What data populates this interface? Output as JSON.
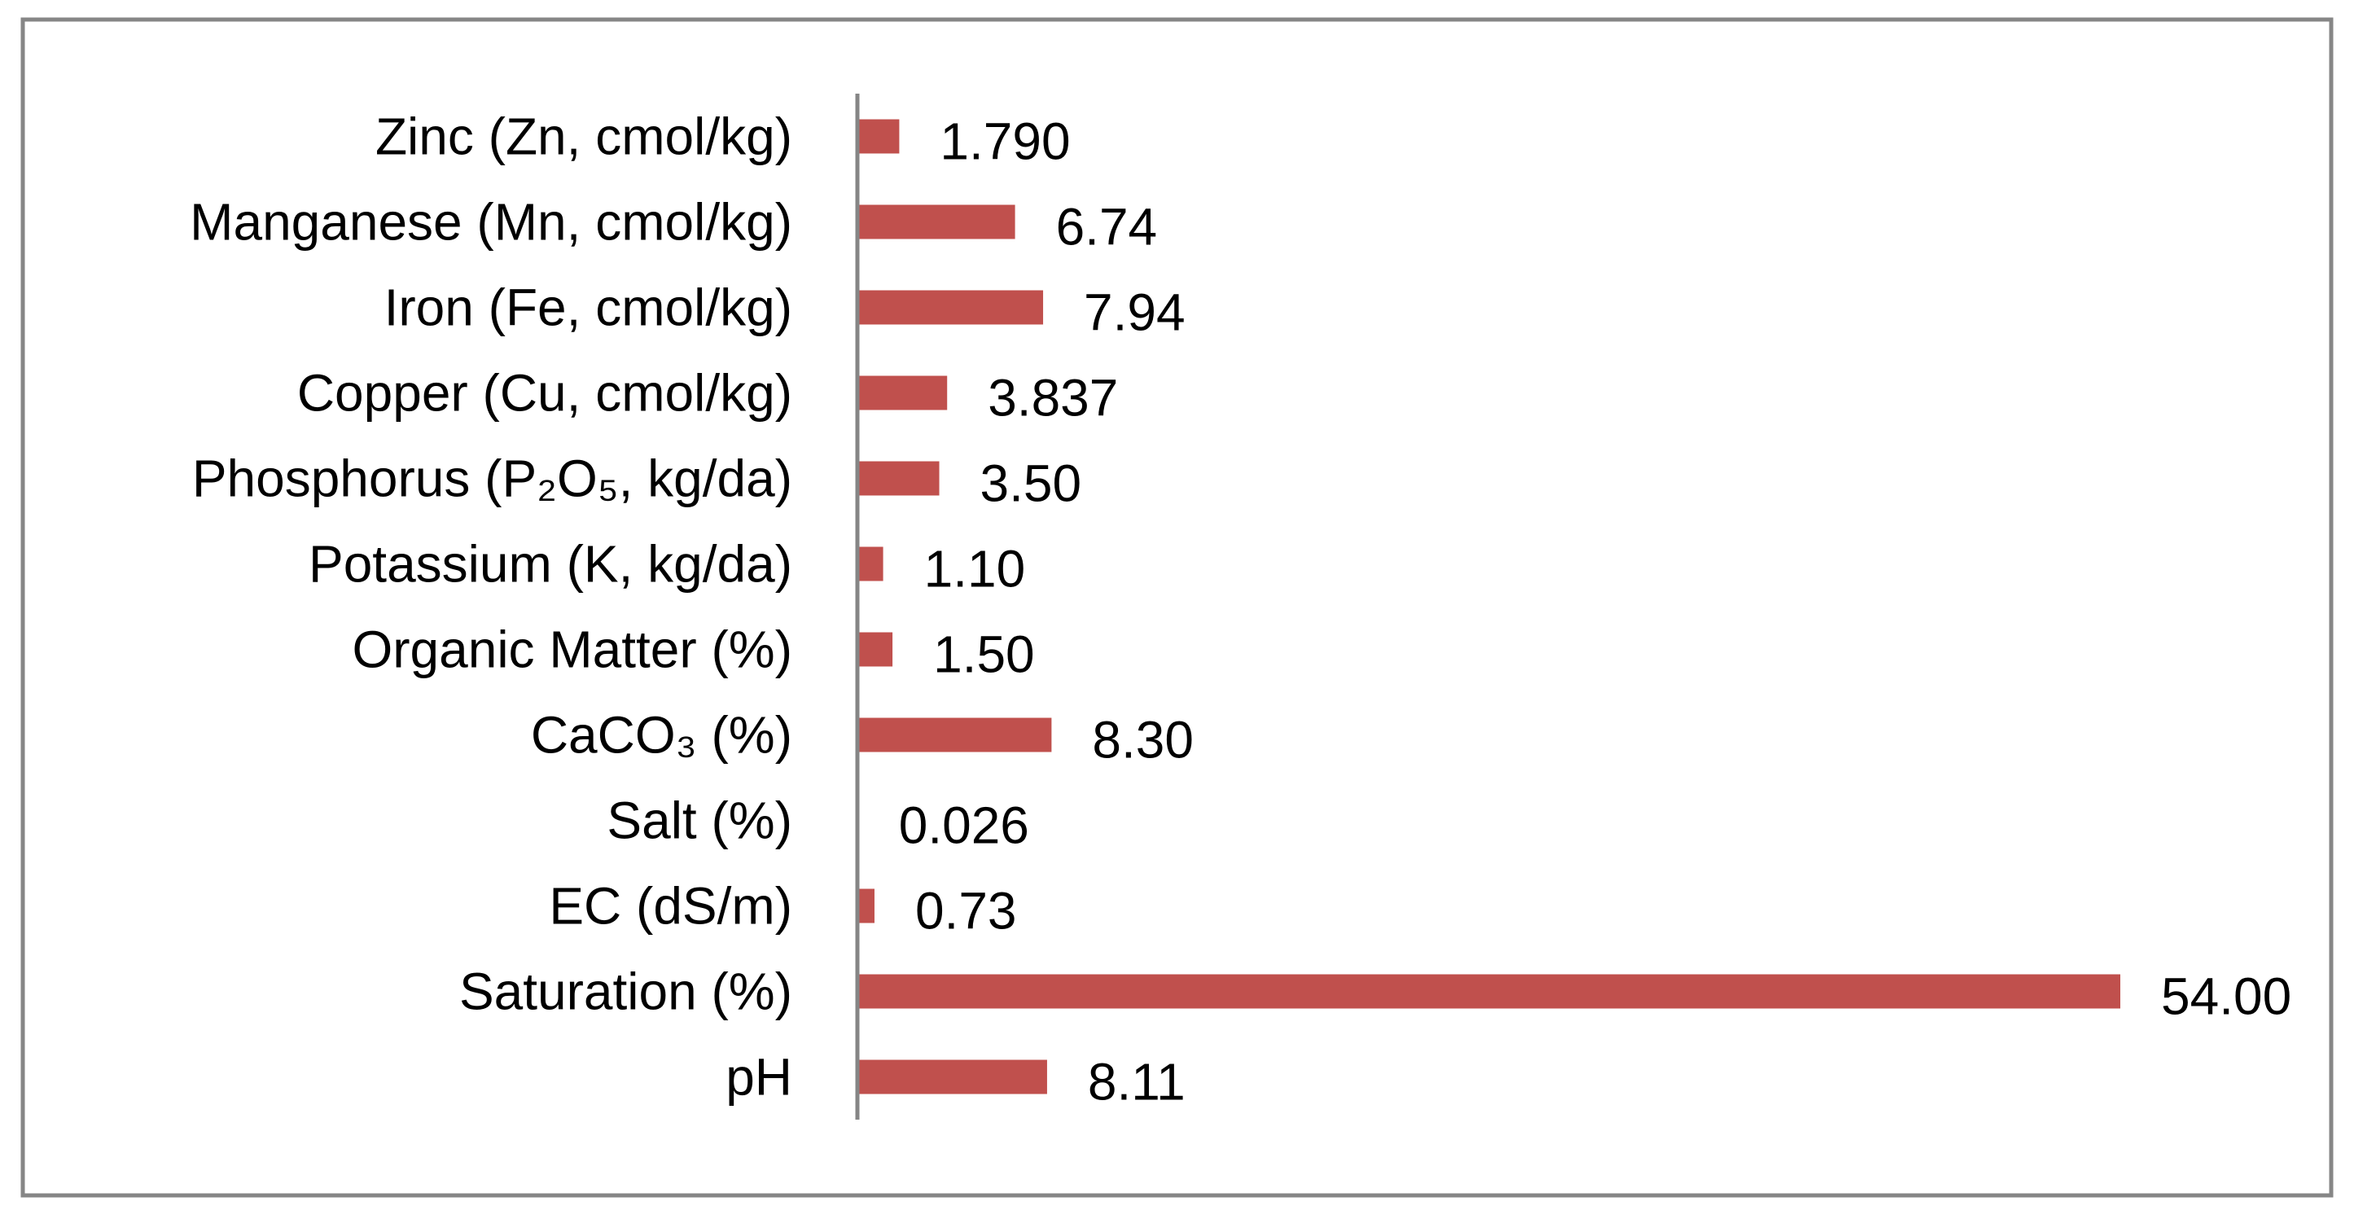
{
  "chart_data": {
    "type": "bar",
    "orientation": "horizontal",
    "categories": [
      "Zinc (Zn, cmol/kg)",
      "Manganese (Mn, cmol/kg)",
      "Iron (Fe, cmol/kg)",
      "Copper (Cu, cmol/kg)",
      "Phosphorus (P₂O₅, kg/da)",
      "Potassium (K, kg/da)",
      "Organic Matter (%)",
      "CaCO₃ (%)",
      "Salt (%)",
      "EC (dS/m)",
      "Saturation (%)",
      "pH"
    ],
    "values": [
      1.79,
      6.74,
      7.94,
      3.837,
      3.5,
      1.1,
      1.5,
      8.3,
      0.026,
      0.73,
      54.0,
      8.11
    ],
    "data_labels": [
      "1.790",
      "6.74",
      "7.94",
      "3.837",
      "3.50",
      "1.10",
      "1.50",
      "8.30",
      "0.026",
      "0.73",
      "54.00",
      "8.11"
    ],
    "title": "",
    "xlabel": "",
    "ylabel": "",
    "xlim": [
      0,
      54
    ],
    "grid": false,
    "legend": "none",
    "bar_color": "#c0504d",
    "axis_color": "#868686",
    "border_color": "#868686"
  }
}
